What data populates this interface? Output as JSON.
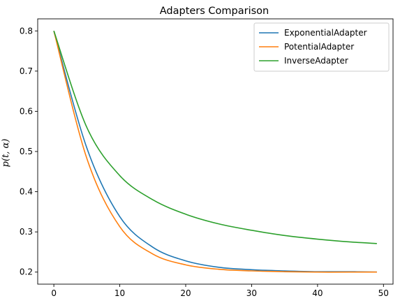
{
  "chart_data": {
    "type": "line",
    "title": "Adapters Comparison",
    "xlabel": "",
    "ylabel": "p(t, α)",
    "xlim": [
      -2.45,
      51.45
    ],
    "ylim": [
      0.17,
      0.83
    ],
    "xticks": [
      0,
      10,
      20,
      30,
      40,
      50
    ],
    "yticks": [
      0.2,
      0.3,
      0.4,
      0.5,
      0.6,
      0.7,
      0.8
    ],
    "ytick_labels": [
      "0.2",
      "0.3",
      "0.4",
      "0.5",
      "0.6",
      "0.7",
      "0.8"
    ],
    "grid": false,
    "legend_position": "top-right",
    "x": [
      0,
      5,
      10,
      15,
      20,
      25,
      30,
      35,
      40,
      45,
      49
    ],
    "series": [
      {
        "name": "ExponentialAdapter",
        "color": "#1f77b4",
        "values": [
          0.8,
          0.509,
          0.338,
          0.262,
          0.228,
          0.212,
          0.206,
          0.203,
          0.201,
          0.201,
          0.2
        ]
      },
      {
        "name": "PotentialAdapter",
        "color": "#ff7f0e",
        "values": [
          0.8,
          0.483,
          0.313,
          0.245,
          0.218,
          0.207,
          0.203,
          0.201,
          0.2,
          0.2,
          0.2
        ]
      },
      {
        "name": "InverseAdapter",
        "color": "#2ca02c",
        "values": [
          0.8,
          0.56,
          0.44,
          0.38,
          0.344,
          0.32,
          0.304,
          0.291,
          0.282,
          0.275,
          0.271
        ]
      }
    ]
  }
}
